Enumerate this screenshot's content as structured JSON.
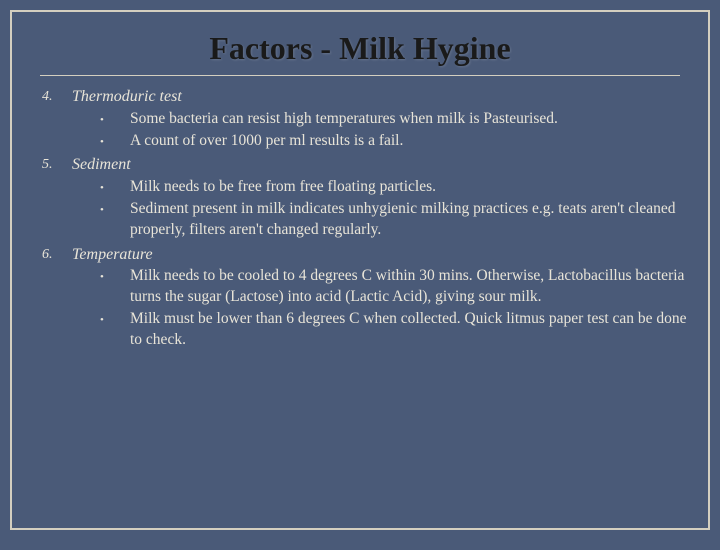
{
  "title": "Factors - Milk Hygine",
  "items": [
    {
      "num": "4.",
      "title": "Thermoduric test",
      "bullets": [
        "Some bacteria can resist high temperatures when milk is Pasteurised.",
        "A count of over 1000 per ml results is a fail."
      ]
    },
    {
      "num": "5.",
      "title": "Sediment",
      "bullets": [
        "Milk needs to be free from free floating particles.",
        "Sediment present in milk indicates unhygienic milking practices e.g. teats aren't cleaned properly, filters aren't changed regularly."
      ]
    },
    {
      "num": "6.",
      "title": "Temperature",
      "bullets": [
        "Milk needs to be cooled to 4 degrees C within 30 mins. Otherwise, Lactobacillus bacteria turns the sugar (Lactose) into acid (Lactic Acid), giving sour milk.",
        "Milk must be lower than 6 degrees C when collected. Quick litmus paper test can be done to check."
      ]
    }
  ],
  "colors": {
    "background": "#4a5a78",
    "border": "#d4cfc0",
    "title_text": "#1a1a1a",
    "body_text": "#e8e4d8"
  }
}
